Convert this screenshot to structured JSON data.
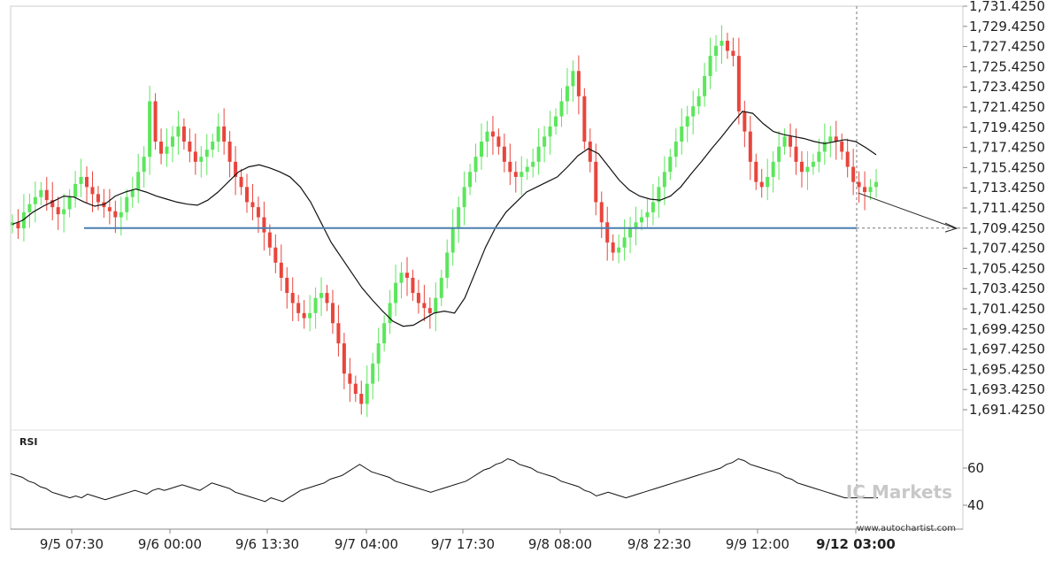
{
  "chart_data": {
    "type": "candlestick",
    "y_ticks": [
      "1,731.4250",
      "1,729.4250",
      "1,727.4250",
      "1,725.4250",
      "1,723.4250",
      "1,721.4250",
      "1,719.4250",
      "1,717.4250",
      "1,715.4250",
      "1,713.4250",
      "1,711.4250",
      "1,709.4250",
      "1,707.4250",
      "1,705.4250",
      "1,703.4250",
      "1,701.4250",
      "1,699.4250",
      "1,697.4250",
      "1,695.4250",
      "1,693.4250",
      "1,691.4250"
    ],
    "y_tick_values": [
      1731.425,
      1729.425,
      1727.425,
      1725.425,
      1723.425,
      1721.425,
      1719.425,
      1717.425,
      1715.425,
      1713.425,
      1711.425,
      1709.425,
      1707.425,
      1705.425,
      1703.425,
      1701.425,
      1699.425,
      1697.425,
      1695.425,
      1693.425,
      1691.425
    ],
    "x_ticks": [
      {
        "label": "9/5 07:30",
        "bold": false
      },
      {
        "label": "9/6 00:00",
        "bold": false
      },
      {
        "label": "9/6 13:30",
        "bold": false
      },
      {
        "label": "9/7 04:00",
        "bold": false
      },
      {
        "label": "9/7 17:30",
        "bold": false
      },
      {
        "label": "9/8 08:00",
        "bold": false
      },
      {
        "label": "9/8 22:30",
        "bold": false
      },
      {
        "label": "9/9 12:00",
        "bold": false
      },
      {
        "label": "9/12 03:00",
        "bold": true
      }
    ],
    "support_level": 1709.425,
    "projection": {
      "start": 1712.9,
      "end": 1709.4
    },
    "close_series": [
      1710.0,
      1709.4,
      1711.0,
      1711.8,
      1712.5,
      1713.2,
      1712.2,
      1711.5,
      1710.8,
      1711.3,
      1712.5,
      1713.8,
      1714.5,
      1713.5,
      1712.8,
      1712.0,
      1711.5,
      1711.1,
      1710.5,
      1711.0,
      1712.5,
      1713.2,
      1715.0,
      1716.5,
      1722.0,
      1718.0,
      1716.8,
      1717.5,
      1718.5,
      1719.5,
      1718.0,
      1717.0,
      1716.0,
      1716.5,
      1717.2,
      1718.0,
      1719.5,
      1718.0,
      1716.0,
      1714.5,
      1713.5,
      1712.0,
      1711.5,
      1710.5,
      1709.0,
      1707.5,
      1706.0,
      1704.5,
      1703.0,
      1702.0,
      1701.0,
      1700.5,
      1701.0,
      1702.5,
      1703.0,
      1702.0,
      1700.0,
      1698.0,
      1695.0,
      1694.0,
      1693.0,
      1692.0,
      1694.0,
      1696.0,
      1698.0,
      1700.0,
      1702.0,
      1704.0,
      1705.0,
      1704.5,
      1703.0,
      1702.0,
      1701.5,
      1701.0,
      1702.5,
      1704.5,
      1707.0,
      1709.5,
      1711.5,
      1713.5,
      1715.0,
      1716.5,
      1718.0,
      1719.0,
      1718.5,
      1717.5,
      1716.0,
      1715.0,
      1714.5,
      1715.0,
      1715.5,
      1716.0,
      1717.5,
      1718.5,
      1719.5,
      1720.5,
      1722.0,
      1723.5,
      1725.0,
      1722.5,
      1718.0,
      1716.0,
      1712.0,
      1710.0,
      1708.0,
      1707.0,
      1707.5,
      1708.5,
      1709.5,
      1710.0,
      1710.5,
      1711.0,
      1712.0,
      1713.5,
      1715.0,
      1716.5,
      1718.0,
      1719.5,
      1720.5,
      1721.5,
      1722.5,
      1724.5,
      1726.5,
      1727.5,
      1728.0,
      1727.0,
      1726.5,
      1721.0,
      1719.0,
      1716.0,
      1714.0,
      1713.5,
      1714.5,
      1716.0,
      1717.5,
      1718.5,
      1717.5,
      1716.0,
      1715.0,
      1715.5,
      1716.0,
      1717.0,
      1718.0,
      1718.5,
      1718.0,
      1717.0,
      1715.5,
      1714.0,
      1713.5,
      1713.0,
      1713.5,
      1714.0
    ],
    "ma_series": [
      1709.8,
      1710.2,
      1711.0,
      1711.6,
      1712.1,
      1712.6,
      1712.5,
      1712.0,
      1711.6,
      1711.8,
      1712.6,
      1713.0,
      1713.3,
      1713.0,
      1712.6,
      1712.3,
      1712.0,
      1711.8,
      1711.7,
      1712.2,
      1713.0,
      1714.0,
      1715.0,
      1715.5,
      1715.7,
      1715.4,
      1715.0,
      1714.5,
      1713.5,
      1712.0,
      1710.0,
      1708.0,
      1706.5,
      1705.0,
      1703.5,
      1702.3,
      1701.2,
      1700.2,
      1699.7,
      1699.8,
      1700.4,
      1701.0,
      1701.2,
      1701.0,
      1702.5,
      1705.0,
      1707.5,
      1709.5,
      1711.0,
      1712.0,
      1713.0,
      1713.5,
      1714.0,
      1714.5,
      1715.5,
      1716.6,
      1717.3,
      1716.8,
      1715.5,
      1714.2,
      1713.2,
      1712.6,
      1712.3,
      1712.2,
      1712.6,
      1713.5,
      1714.8,
      1716.0,
      1717.3,
      1718.5,
      1719.8,
      1721.0,
      1720.8,
      1719.8,
      1719.0,
      1718.7,
      1718.5,
      1718.3,
      1718.0,
      1717.8,
      1718.0,
      1718.2,
      1718.0,
      1717.4,
      1716.7
    ],
    "rsi": {
      "title": "RSI",
      "y_ticks": [
        "60",
        "40"
      ],
      "y_tick_values": [
        60,
        40
      ],
      "values": [
        57,
        56,
        55,
        53,
        52,
        50,
        49,
        47,
        46,
        45,
        44,
        45,
        44,
        46,
        45,
        44,
        43,
        44,
        45,
        46,
        47,
        48,
        47,
        46,
        48,
        49,
        48,
        49,
        50,
        51,
        50,
        49,
        48,
        50,
        52,
        51,
        50,
        49,
        47,
        46,
        45,
        44,
        43,
        42,
        44,
        43,
        42,
        44,
        46,
        48,
        49,
        50,
        51,
        52,
        54,
        55,
        56,
        58,
        60,
        62,
        60,
        58,
        57,
        56,
        55,
        53,
        52,
        51,
        50,
        49,
        48,
        47,
        48,
        49,
        50,
        51,
        52,
        53,
        55,
        57,
        59,
        60,
        62,
        63,
        65,
        64,
        62,
        61,
        60,
        58,
        57,
        56,
        55,
        53,
        52,
        51,
        50,
        48,
        47,
        45,
        46,
        47,
        46,
        45,
        44,
        45,
        46,
        47,
        48,
        49,
        50,
        51,
        52,
        53,
        54,
        55,
        56,
        57,
        58,
        59,
        60,
        62,
        63,
        65,
        64,
        62,
        61,
        60,
        59,
        58,
        57,
        55,
        54,
        52,
        51,
        50,
        49,
        48,
        47,
        46,
        45,
        44,
        44,
        44
      ]
    }
  },
  "watermark": {
    "logo": "IC Markets",
    "url": "www.autochartist.com"
  },
  "colors": {
    "up": "#5ce65c",
    "down": "#e8453c",
    "ma": "#111111",
    "support": "#4a7fb0",
    "grid": "#d9d9d9",
    "axis": "#888888"
  }
}
